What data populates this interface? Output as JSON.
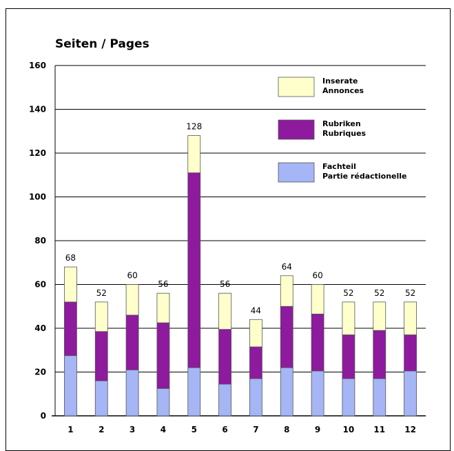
{
  "chart_data": {
    "type": "bar",
    "stacked": true,
    "title": "Seiten / Pages",
    "xlabel": "",
    "ylabel": "",
    "categories": [
      "1",
      "2",
      "3",
      "4",
      "5",
      "6",
      "7",
      "8",
      "9",
      "10",
      "11",
      "12"
    ],
    "ylim": [
      0,
      160
    ],
    "yticks": [
      0,
      20,
      40,
      60,
      80,
      100,
      120,
      140,
      160
    ],
    "grid": true,
    "legend_position": "top-right",
    "series": [
      {
        "name": "Fachteil\nPartie rédactionelle",
        "color": "#a5b5f5",
        "values": [
          27.5,
          16,
          21,
          12.5,
          22,
          14.5,
          17,
          22,
          20.5,
          17,
          17,
          20.5
        ]
      },
      {
        "name": "Rubriken\nRubriques",
        "color": "#8e1a9e",
        "values": [
          24.5,
          22.5,
          25,
          30,
          89,
          25,
          14.5,
          28,
          26,
          20,
          22,
          16.5
        ]
      },
      {
        "name": "Inserate\nAnnonces",
        "color": "#ffffcc",
        "values": [
          16,
          13.5,
          14,
          13.5,
          17,
          16.5,
          12.5,
          14,
          13.5,
          15,
          13,
          15
        ]
      }
    ],
    "totals": [
      68,
      52,
      60,
      56,
      128,
      56,
      44,
      64,
      60,
      52,
      52,
      52
    ]
  }
}
